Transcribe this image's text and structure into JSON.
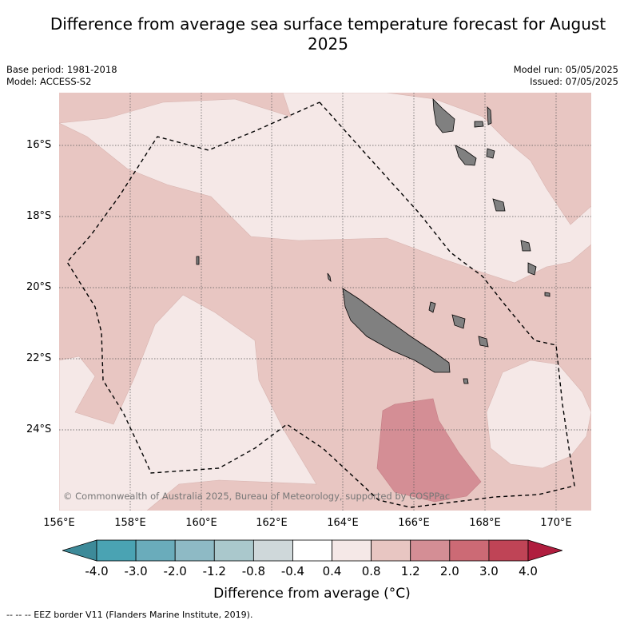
{
  "title": "Difference from average sea surface temperature forecast for August 2025",
  "meta_left": [
    "Base period: 1981-2018",
    "Model: ACCESS-S2"
  ],
  "meta_right": [
    "Model run: 05/05/2025",
    "Issued: 07/05/2025"
  ],
  "copyright": "© Commonwealth of Australia 2025, Bureau of Meteorology, supported by COSPPac",
  "lat_labels": [
    "16°S",
    "18°S",
    "20°S",
    "22°S",
    "24°S"
  ],
  "lon_labels": [
    "156°E",
    "158°E",
    "160°E",
    "162°E",
    "164°E",
    "166°E",
    "168°E",
    "170°E"
  ],
  "colorbar": {
    "title": "Difference from average (°C)",
    "ticks": [
      "-4.0",
      "-3.0",
      "-2.0",
      "-1.2",
      "-0.8",
      "-0.4",
      "0.4",
      "0.8",
      "1.2",
      "2.0",
      "3.0",
      "4.0"
    ],
    "colors": [
      "#3d8a99",
      "#4aa3b3",
      "#6aacbb",
      "#8ebac5",
      "#aac8cc",
      "#cfd8da",
      "#ffffff",
      "#f5e8e7",
      "#e8c6c2",
      "#d48e95",
      "#cc6a75",
      "#bf4456",
      "#b01d3e"
    ]
  },
  "legend_footer": "-- -- -- EEZ border V11 (Flanders Marine Institute, 2019).",
  "colors": {
    "anomaly_04_08": "#f5e8e7",
    "anomaly_08_12": "#e8c6c2",
    "anomaly_12_20": "#d48e95",
    "land": "#808080"
  }
}
